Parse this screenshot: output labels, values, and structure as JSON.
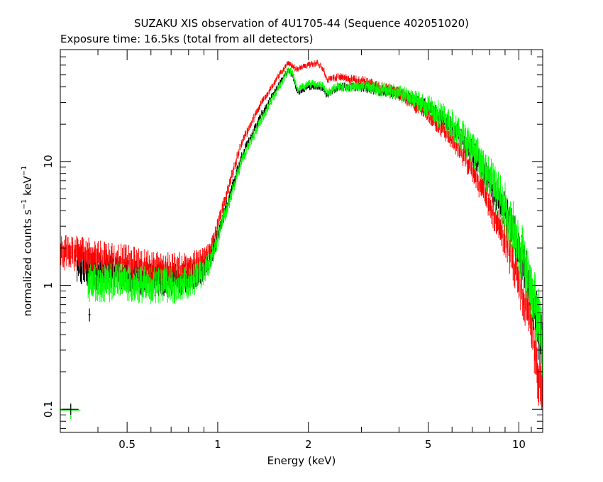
{
  "chart_data": {
    "type": "scatter",
    "title": "SUZAKU XIS observation of 4U1705-44 (Sequence 402051020)",
    "subtitle": "Exposure time: 16.5ks (total from all detectors)",
    "xlabel": "Energy (keV)",
    "ylabel": {
      "base": "normalized counts s",
      "exp1": "−1",
      "mid": " keV",
      "exp2": "−1"
    },
    "xscale": "log",
    "yscale": "log",
    "xlim": [
      0.3,
      12
    ],
    "ylim": [
      0.065,
      80
    ],
    "x_ticks": [
      {
        "value": 0.5,
        "label": "0.5"
      },
      {
        "value": 1,
        "label": "1"
      },
      {
        "value": 2,
        "label": "2"
      },
      {
        "value": 5,
        "label": "5"
      },
      {
        "value": 10,
        "label": "10"
      }
    ],
    "y_ticks": [
      {
        "value": 0.1,
        "label": "0.1"
      },
      {
        "value": 1,
        "label": "1"
      },
      {
        "value": 10,
        "label": "10"
      }
    ],
    "grid": false,
    "series": [
      {
        "color": "#000000",
        "x": [
          0.34,
          0.4,
          0.5,
          0.6,
          0.7,
          0.8,
          0.9,
          0.95,
          1.0,
          1.1,
          1.2,
          1.4,
          1.6,
          1.72,
          1.78,
          1.84,
          2.0,
          2.15,
          2.25,
          2.3,
          2.5,
          3.0,
          4.0,
          5.0,
          6.0,
          7.0,
          8.0,
          9.0,
          10.0,
          11.0,
          12.0
        ],
        "y": [
          1.4,
          1.3,
          1.2,
          1.1,
          1.1,
          1.15,
          1.35,
          1.7,
          2.5,
          5.5,
          11,
          24,
          42,
          55,
          48,
          36,
          40,
          40,
          38,
          34,
          40,
          40,
          35,
          27,
          19,
          12,
          7,
          4,
          2.0,
          0.95,
          0.3
        ],
        "err_frac": [
          0.22,
          0.22,
          0.2,
          0.2,
          0.2,
          0.18,
          0.15,
          0.12,
          0.1,
          0.08,
          0.06,
          0.05,
          0.04,
          0.04,
          0.04,
          0.04,
          0.04,
          0.04,
          0.04,
          0.04,
          0.05,
          0.06,
          0.08,
          0.1,
          0.12,
          0.15,
          0.18,
          0.22,
          0.26,
          0.3,
          0.4
        ]
      },
      {
        "color": "#ff0000",
        "x": [
          0.3,
          0.35,
          0.4,
          0.5,
          0.6,
          0.7,
          0.8,
          0.9,
          0.95,
          1.0,
          1.1,
          1.2,
          1.4,
          1.6,
          1.72,
          1.78,
          1.84,
          2.0,
          2.15,
          2.25,
          2.3,
          2.5,
          3.0,
          4.0,
          5.0,
          6.0,
          7.0,
          8.0,
          9.0,
          10.0,
          11.0,
          12.0
        ],
        "y": [
          1.9,
          1.8,
          1.7,
          1.55,
          1.4,
          1.35,
          1.4,
          1.6,
          2.0,
          3.0,
          7,
          14,
          30,
          50,
          62,
          58,
          55,
          60,
          62,
          55,
          45,
          48,
          45,
          35,
          24,
          15,
          8.5,
          4.5,
          2.3,
          1.1,
          0.45,
          0.12
        ],
        "err_frac": [
          0.22,
          0.22,
          0.22,
          0.2,
          0.2,
          0.2,
          0.18,
          0.15,
          0.12,
          0.1,
          0.08,
          0.06,
          0.05,
          0.04,
          0.04,
          0.04,
          0.04,
          0.04,
          0.04,
          0.04,
          0.04,
          0.05,
          0.06,
          0.08,
          0.1,
          0.12,
          0.15,
          0.18,
          0.22,
          0.26,
          0.3,
          0.4
        ]
      },
      {
        "color": "#00ff00",
        "x": [
          0.37,
          0.4,
          0.5,
          0.6,
          0.7,
          0.8,
          0.9,
          0.95,
          1.0,
          1.1,
          1.2,
          1.4,
          1.6,
          1.72,
          1.78,
          1.84,
          2.0,
          2.15,
          2.25,
          2.3,
          2.5,
          3.0,
          4.0,
          5.0,
          6.0,
          7.0,
          8.0,
          9.0,
          10.0,
          11.0,
          12.0
        ],
        "y": [
          1.0,
          1.1,
          1.05,
          1.0,
          1.0,
          1.05,
          1.25,
          1.6,
          2.4,
          5.0,
          10,
          22,
          40,
          55,
          50,
          38,
          42,
          42,
          40,
          36,
          40,
          40,
          36,
          28,
          20,
          13,
          7.5,
          4.3,
          2.2,
          1.0,
          0.35
        ],
        "err_frac": [
          0.25,
          0.25,
          0.22,
          0.22,
          0.22,
          0.2,
          0.17,
          0.13,
          0.11,
          0.09,
          0.07,
          0.06,
          0.05,
          0.05,
          0.05,
          0.05,
          0.05,
          0.05,
          0.05,
          0.05,
          0.06,
          0.07,
          0.1,
          0.14,
          0.18,
          0.22,
          0.26,
          0.3,
          0.34,
          0.38,
          0.45
        ]
      }
    ],
    "annotations": [
      {
        "type": "error-cross",
        "color": "#000000",
        "x": 0.375,
        "y": 0.58,
        "xerr": 0.003,
        "yerr_frac": 0.12
      },
      {
        "type": "error-cross",
        "color": "#00ff00",
        "x": 0.325,
        "y": 0.098,
        "xerr": 0.025,
        "yerr_frac": 0.15
      },
      {
        "type": "error-cross",
        "color": "#000000",
        "x": 0.325,
        "y": 0.1,
        "xerr": 0.02,
        "yerr_frac": 0.1
      }
    ]
  }
}
